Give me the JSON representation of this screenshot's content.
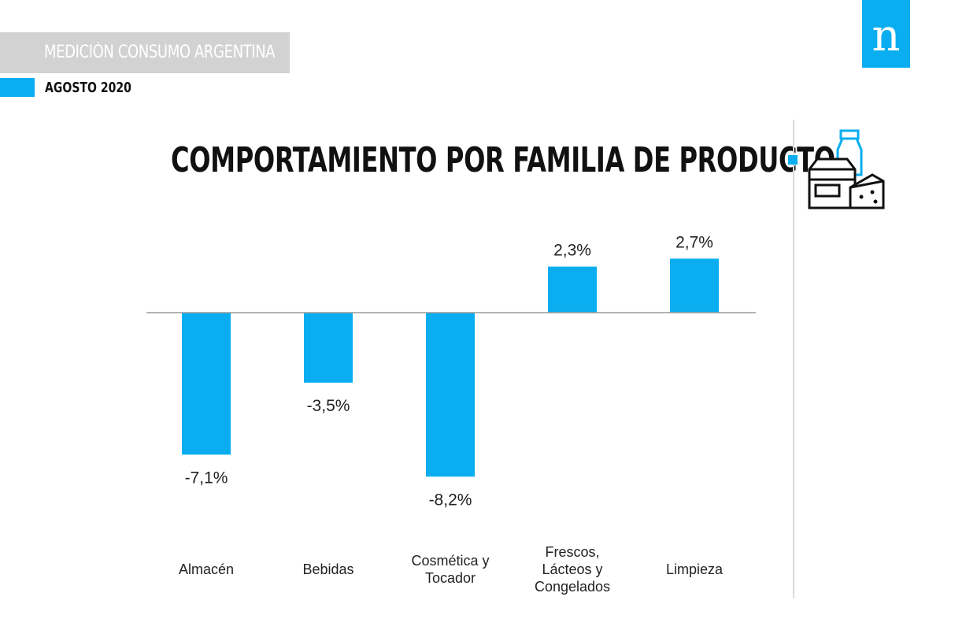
{
  "header": {
    "title": "MEDICIÓN CONSUMO ARGENTINA",
    "date": "AGOSTO 2020",
    "logo_letter": "n"
  },
  "colors": {
    "accent": "#0aaef0",
    "header_band": "#d2d2d2",
    "text": "#222222"
  },
  "icon": "grocery-icon",
  "chart_data": {
    "type": "bar",
    "title": "COMPORTAMIENTO POR FAMILIA DE PRODUCTO",
    "categories": [
      [
        "Almacén"
      ],
      [
        "Bebidas"
      ],
      [
        "Cosmética y",
        "Tocador"
      ],
      [
        "Frescos,",
        "Lácteos y",
        "Congelados"
      ],
      [
        "Limpieza"
      ]
    ],
    "values": [
      -7.1,
      -3.5,
      -8.2,
      2.3,
      2.7
    ],
    "value_labels": [
      "-7,1%",
      "-3,5%",
      "-8,2%",
      "2,3%",
      "2,7%"
    ],
    "ylim": [
      -8.2,
      2.7
    ],
    "grid": false,
    "legend": "none",
    "color": "#0aaef0"
  }
}
